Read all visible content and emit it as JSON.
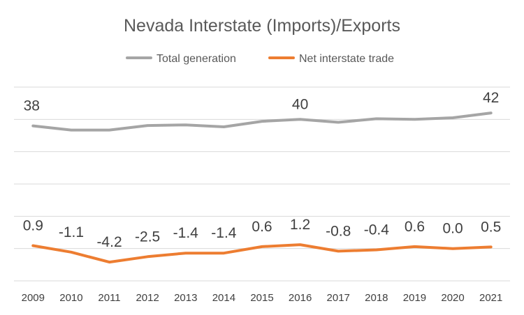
{
  "chart_data": {
    "type": "line",
    "title": "Nevada Interstate (Imports)/Exports",
    "xlabel": "",
    "ylabel": "",
    "categories": [
      "2009",
      "2010",
      "2011",
      "2012",
      "2013",
      "2014",
      "2015",
      "2016",
      "2017",
      "2018",
      "2019",
      "2020",
      "2021"
    ],
    "series": [
      {
        "name": "Total generation",
        "color": "#A5A5A5",
        "values": [
          38,
          36.7,
          36.7,
          38.1,
          38.3,
          37.7,
          39.4,
          40,
          39.1,
          40.2,
          40,
          40.5,
          42
        ],
        "data_labels": {
          "0": "38",
          "7": "40",
          "12": "42"
        }
      },
      {
        "name": "Net interstate trade",
        "color": "#ED7D31",
        "values": [
          0.9,
          -1.1,
          -4.2,
          -2.5,
          -1.4,
          -1.4,
          0.6,
          1.2,
          -0.8,
          -0.4,
          0.6,
          0.0,
          0.5
        ],
        "data_labels": {
          "0": "0.9",
          "1": "-1.1",
          "2": "-4.2",
          "3": "-2.5",
          "4": "-1.4",
          "5": "-1.4",
          "6": "0.6",
          "7": "1.2",
          "8": "-0.8",
          "9": "-0.4",
          "10": "0.6",
          "11": "0.0",
          "12": "0.5"
        }
      }
    ],
    "ylim": [
      -10,
      50
    ],
    "gridlines": [
      -10,
      0,
      10,
      20,
      30,
      40,
      50
    ],
    "grid": true,
    "legend": "top-center"
  }
}
